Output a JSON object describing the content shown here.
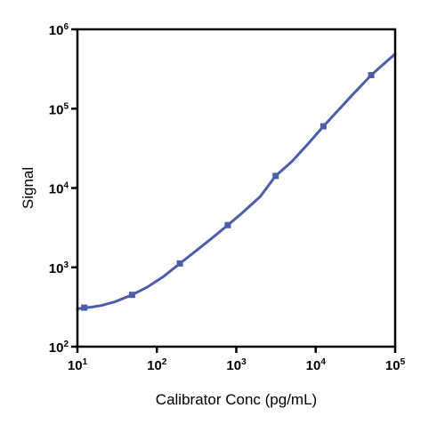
{
  "chart_data": {
    "type": "line",
    "xlabel": "Calibrator Conc (pg/mL)",
    "ylabel": "Signal",
    "x_scale": "log",
    "y_scale": "log",
    "xlim": [
      10,
      100000
    ],
    "ylim": [
      100,
      1000000
    ],
    "x_ticks": [
      {
        "base": "10",
        "exp": "1",
        "value": 10
      },
      {
        "base": "10",
        "exp": "2",
        "value": 100
      },
      {
        "base": "10",
        "exp": "3",
        "value": 1000
      },
      {
        "base": "10",
        "exp": "4",
        "value": 10000
      },
      {
        "base": "10",
        "exp": "5",
        "value": 100000
      }
    ],
    "y_ticks": [
      {
        "base": "10",
        "exp": "2",
        "value": 100
      },
      {
        "base": "10",
        "exp": "3",
        "value": 1000
      },
      {
        "base": "10",
        "exp": "4",
        "value": 10000
      },
      {
        "base": "10",
        "exp": "5",
        "value": 100000
      },
      {
        "base": "10",
        "exp": "6",
        "value": 1000000
      }
    ],
    "points": {
      "x": [
        12.2,
        48.8,
        195,
        781,
        3125,
        12500,
        50000
      ],
      "y": [
        310,
        450,
        1120,
        3400,
        14200,
        60000,
        265000
      ]
    },
    "fit_curve": {
      "x": [
        10,
        15,
        20,
        30,
        48.8,
        75,
        120,
        195,
        300,
        500,
        781,
        1200,
        2000,
        3125,
        5000,
        8000,
        12500,
        20000,
        30000,
        50000,
        75000,
        100000
      ],
      "y": [
        300,
        315,
        330,
        370,
        450,
        560,
        760,
        1120,
        1570,
        2350,
        3400,
        4900,
        7800,
        14200,
        21500,
        36000,
        60000,
        100000,
        155000,
        265000,
        380000,
        490000
      ]
    },
    "grid": false,
    "color": "#4a5fa8"
  }
}
